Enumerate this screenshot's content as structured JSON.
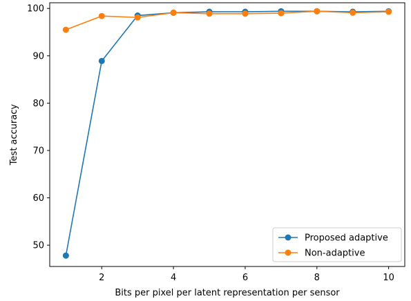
{
  "chart_data": {
    "type": "line",
    "xlabel": "Bits per pixel per latent representation per sensor",
    "ylabel": "Test accuracy",
    "xlim": [
      0.55,
      10.45
    ],
    "ylim": [
      45.5,
      101.2
    ],
    "xticks": [
      2,
      4,
      6,
      8,
      10
    ],
    "yticks": [
      50,
      60,
      70,
      80,
      90,
      100
    ],
    "grid": false,
    "legend_position": "lower-right",
    "x": [
      1,
      2,
      3,
      4,
      5,
      6,
      7,
      8,
      9,
      10
    ],
    "series": [
      {
        "name": "Proposed adaptive",
        "color": "#1f77b4",
        "values": [
          47.8,
          88.9,
          98.5,
          99.1,
          99.3,
          99.3,
          99.4,
          99.4,
          99.3,
          99.4
        ]
      },
      {
        "name": "Non-adaptive",
        "color": "#ff7f0e",
        "values": [
          95.5,
          98.4,
          98.1,
          99.1,
          98.9,
          98.9,
          99.0,
          99.4,
          99.1,
          99.3
        ]
      }
    ]
  }
}
